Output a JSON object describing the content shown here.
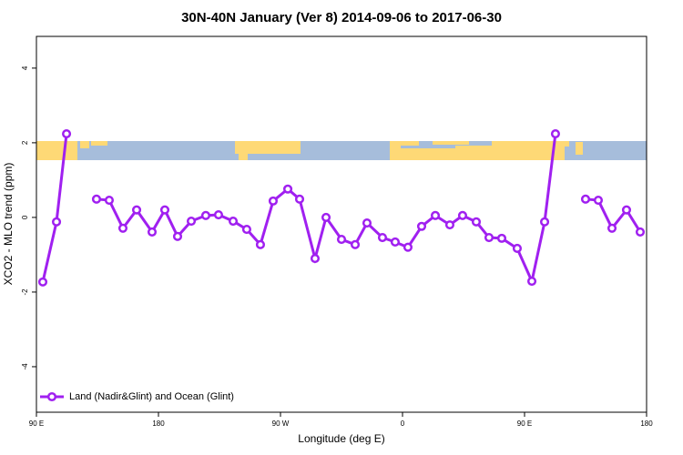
{
  "chart_data": {
    "type": "line",
    "title": "30N-40N January (Ver 8)   2014-09-06 to 2017-06-30",
    "x_label": "Longitude (deg E)",
    "y_label": "XCO2 - MLO trend (ppm)",
    "x": [
      94.7,
      104.8,
      112.2,
      123,
      134.3,
      143.7,
      153.8,
      163.9,
      175.3,
      184.7,
      194.1,
      204.2,
      214.9,
      224.3,
      235.1,
      245.1,
      255.2,
      264.6,
      275.4,
      284.1,
      295.5,
      303.6,
      315.0,
      325.1,
      333.8,
      345.2,
      354.6,
      364.0,
      374.1,
      384.2,
      394.9,
      404.3,
      414.4,
      423.8,
      433.2,
      444.6,
      455.4,
      464.8,
      472.8,
      485,
      495.0,
      504.4,
      514.5,
      525.2,
      535.3
    ],
    "series": [
      {
        "name": "Land (Nadir&Glint) and Ocean (Glint)",
        "color": "#a020f0",
        "values": [
          -1.73,
          -0.12,
          2.24,
          null,
          0.49,
          0.46,
          -0.29,
          0.2,
          -0.39,
          0.2,
          -0.51,
          -0.1,
          0.05,
          0.07,
          -0.1,
          -0.32,
          -0.73,
          0.44,
          0.76,
          0.49,
          -1.1,
          0.0,
          -0.59,
          -0.73,
          -0.15,
          -0.54,
          -0.66,
          -0.8,
          -0.24,
          0.05,
          -0.2,
          0.05,
          -0.12,
          -0.54,
          -0.56,
          -0.83,
          -1.71,
          -0.12,
          2.24,
          null,
          0.49,
          0.46,
          -0.29,
          0.2,
          -0.39
        ]
      }
    ],
    "xlim": [
      90,
      540
    ],
    "xticks": [
      {
        "value": 90,
        "label": "90 E"
      },
      {
        "value": 180,
        "label": "180"
      },
      {
        "value": 270,
        "label": "90 W"
      },
      {
        "value": 360,
        "label": "0"
      },
      {
        "value": 450,
        "label": "90 E"
      },
      {
        "value": 540,
        "label": "180"
      }
    ],
    "ylim": [
      -5.22,
      4.85
    ],
    "yticks": [
      -4,
      -2,
      0,
      2,
      4
    ],
    "legend": "bottomleft"
  }
}
